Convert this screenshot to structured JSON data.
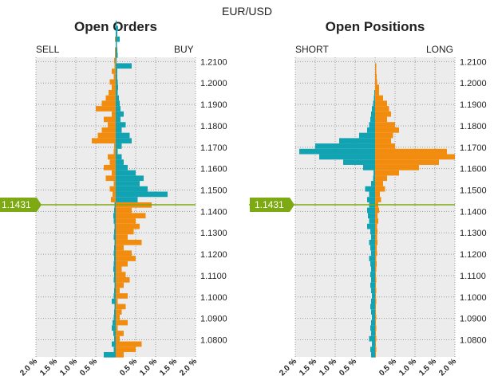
{
  "title": "EUR/USD",
  "colors": {
    "sell": "#F28C0F",
    "buy": "#12A3B3",
    "panel_bg": "#ECECEC",
    "grid": "#9A9A9A",
    "current_marker": "#7DAA12"
  },
  "current_price_label": "1.1431",
  "chart_data": [
    {
      "type": "bar",
      "orientation": "horizontal-diverging",
      "title": "Open Orders",
      "left_label": "SELL",
      "right_label": "BUY",
      "ylim": [
        1.072,
        1.212
      ],
      "xlim": [
        -2.0,
        2.0
      ],
      "yticks": [
        "1.2100",
        "1.2000",
        "1.1900",
        "1.1800",
        "1.1700",
        "1.1600",
        "1.1500",
        "1.1400",
        "1.1300",
        "1.1200",
        "1.1100",
        "1.1000",
        "1.0900",
        "1.0800"
      ],
      "xticks": [
        "2.0 %",
        "1.5 %",
        "1.0 %",
        "0.5 %",
        "",
        "0.5 %",
        "1.0 %",
        "1.5 %",
        "2.0 %"
      ],
      "current_price": 1.1431,
      "bin_start": 1.073,
      "bin_step": 0.0025,
      "left": [
        0.3,
        0.05,
        0.1,
        0.04,
        0.06,
        0.1,
        0.08,
        0.05,
        0.04,
        0.03,
        0.1,
        0.05,
        0.04,
        0.03,
        0.05,
        0.04,
        0.06,
        0.05,
        0.04,
        0.05,
        0.04,
        0.03,
        0.05,
        0.04,
        0.03,
        0.05,
        0.06,
        0.04,
        0.03,
        0.12,
        0.08,
        0.15,
        0.05,
        0.25,
        0.1,
        0.3,
        0.15,
        0.2,
        0.05,
        0.04,
        0.6,
        0.45,
        0.35,
        0.2,
        0.3,
        0.1,
        0.5,
        0.35,
        0.25,
        0.18,
        0.1,
        0.15,
        0.05,
        0.1,
        0.03,
        0.04,
        0.02,
        0.02,
        0.0,
        0.02,
        0.0,
        0.0,
        0.0,
        0.0
      ],
      "right": [
        0.2,
        0.5,
        0.65,
        0.1,
        0.2,
        0.05,
        0.3,
        0.1,
        0.15,
        0.25,
        0.05,
        0.3,
        0.1,
        0.2,
        0.35,
        0.25,
        0.15,
        0.3,
        0.5,
        0.4,
        0.2,
        0.65,
        0.3,
        0.45,
        0.6,
        0.5,
        0.75,
        0.4,
        0.9,
        0.55,
        1.3,
        0.8,
        0.6,
        0.7,
        0.5,
        0.3,
        0.2,
        0.15,
        0.05,
        0.15,
        0.4,
        0.35,
        0.15,
        0.25,
        0.12,
        0.2,
        0.12,
        0.1,
        0.08,
        0.05,
        0.06,
        0.05,
        0.04,
        0.04,
        0.4,
        0.02,
        0.05,
        0.04,
        0.03,
        0.1,
        0.04,
        0.06,
        0.02,
        0.0
      ]
    },
    {
      "type": "bar",
      "orientation": "horizontal-diverging",
      "title": "Open Positions",
      "left_label": "SHORT",
      "right_label": "LONG",
      "ylim": [
        1.072,
        1.212
      ],
      "xlim": [
        -2.0,
        2.0
      ],
      "yticks": [
        "1.2100",
        "1.2000",
        "1.1900",
        "1.1800",
        "1.1700",
        "1.1600",
        "1.1500",
        "1.1400",
        "1.1300",
        "1.1200",
        "1.1100",
        "1.1000",
        "1.0900",
        "1.0800"
      ],
      "xticks": [
        "2.0 %",
        "1.5 %",
        "1.0 %",
        "0.5 %",
        "",
        "0.5 %",
        "1.0 %",
        "1.5 %",
        "2.0 %"
      ],
      "current_price": 1.1431,
      "bin_start": 1.073,
      "bin_step": 0.0025,
      "left": [
        0.1,
        0.12,
        0.08,
        0.15,
        0.1,
        0.12,
        0.1,
        0.08,
        0.1,
        0.12,
        0.1,
        0.08,
        0.1,
        0.12,
        0.1,
        0.12,
        0.1,
        0.12,
        0.15,
        0.1,
        0.12,
        0.15,
        0.1,
        0.12,
        0.2,
        0.15,
        0.18,
        0.2,
        0.15,
        0.2,
        0.15,
        0.25,
        0.1,
        0.05,
        0.04,
        0.3,
        0.8,
        1.4,
        1.9,
        1.5,
        0.9,
        0.4,
        0.2,
        0.15,
        0.12,
        0.1,
        0.08,
        0.05,
        0.03,
        0.02,
        0.0,
        0.0,
        0.0,
        0.0,
        0.0,
        0.0,
        0.0,
        0.0,
        0.0,
        0.0,
        0.0,
        0.0,
        0.0,
        0.0
      ],
      "right": [
        0.02,
        0.03,
        0.02,
        0.03,
        0.02,
        0.03,
        0.02,
        0.03,
        0.02,
        0.02,
        0.03,
        0.02,
        0.03,
        0.02,
        0.03,
        0.02,
        0.03,
        0.04,
        0.03,
        0.05,
        0.04,
        0.06,
        0.05,
        0.06,
        0.05,
        0.08,
        0.06,
        0.1,
        0.08,
        0.15,
        0.12,
        0.25,
        0.2,
        0.3,
        0.6,
        1.1,
        1.6,
        2.0,
        1.8,
        0.5,
        0.4,
        0.45,
        0.6,
        0.5,
        0.3,
        0.4,
        0.35,
        0.3,
        0.2,
        0.1,
        0.1,
        0.05,
        0.04,
        0.03,
        0.03,
        0.0,
        0.0,
        0.0,
        0.0,
        0.0,
        0.0,
        0.0,
        0.0,
        0.0
      ]
    }
  ]
}
